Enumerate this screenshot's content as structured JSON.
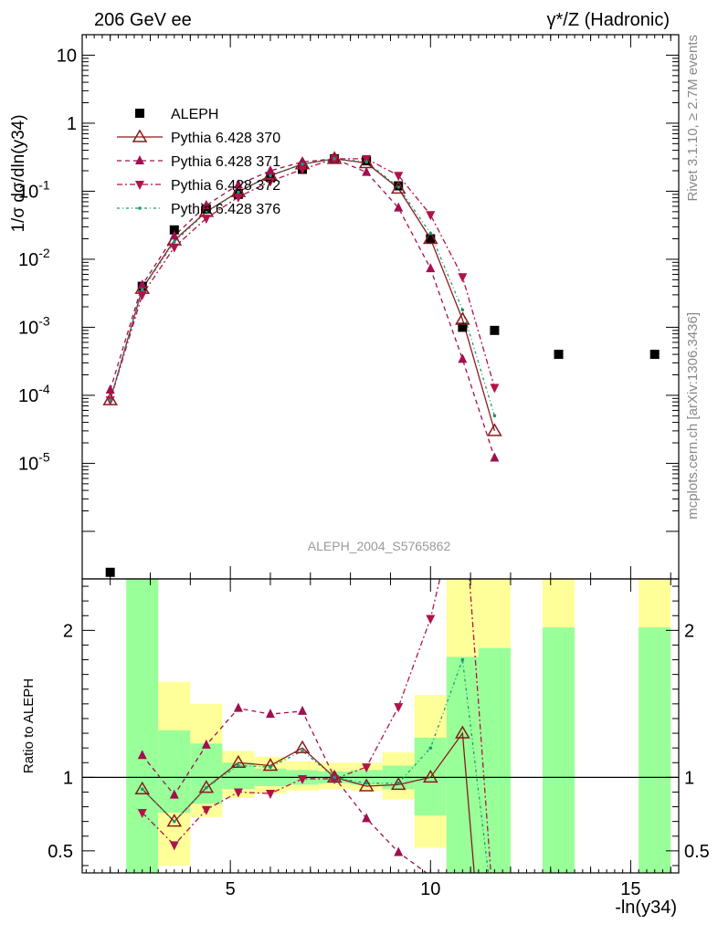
{
  "header": {
    "left": "206 GeV ee",
    "right": "γ*/Z (Hadronic)"
  },
  "side_labels": {
    "rivet": "Rivet 3.1.10, ≥ 2.7M events",
    "mcplots": "mcplots.cern.ch [arXiv:1306.3436]"
  },
  "watermark": "ALEPH_2004_S5765862",
  "colors": {
    "data": "#000000",
    "p370": "#8b1a1a",
    "p371": "#a0104f",
    "p372": "#b0134a",
    "p376": "#189a78",
    "band_yellow": "#ffff99",
    "band_green": "#99ff99"
  },
  "chart_data": [
    {
      "type": "scatter",
      "name": "main",
      "ylabel": "1/σ dσ/dln(y34)",
      "yscale": "log",
      "ylim": [
        2e-07,
        20
      ],
      "xlim": [
        1.3,
        16.2
      ],
      "yticks": [
        "10^-5",
        "10^-4",
        "10^-3",
        "10^-2",
        "10^-1",
        "1",
        "10"
      ],
      "legend_position": "top-left",
      "series": [
        {
          "name": "ALEPH",
          "style": "data",
          "points": [
            [
              2.0,
              2.5e-07
            ],
            [
              2.8,
              0.004
            ],
            [
              3.6,
              0.027
            ],
            [
              4.4,
              0.055
            ],
            [
              5.2,
              0.09
            ],
            [
              6.0,
              0.16
            ],
            [
              6.8,
              0.21
            ],
            [
              7.6,
              0.3
            ],
            [
              8.4,
              0.28
            ],
            [
              9.2,
              0.12
            ],
            [
              10.0,
              0.02
            ],
            [
              10.8,
              0.001
            ],
            [
              11.6,
              0.0009
            ],
            [
              13.2,
              0.0004
            ],
            [
              15.6,
              0.0004
            ]
          ]
        },
        {
          "name": "Pythia 6.428 370",
          "style": "p370",
          "points": [
            [
              2.0,
              8.5e-05
            ],
            [
              2.8,
              0.0037
            ],
            [
              3.6,
              0.019
            ],
            [
              4.4,
              0.05
            ],
            [
              5.2,
              0.098
            ],
            [
              6.0,
              0.17
            ],
            [
              6.8,
              0.25
            ],
            [
              7.6,
              0.3
            ],
            [
              8.4,
              0.26
            ],
            [
              9.2,
              0.11
            ],
            [
              10.0,
              0.02
            ],
            [
              10.8,
              0.0013
            ],
            [
              11.6,
              3e-05
            ]
          ]
        },
        {
          "name": "Pythia 6.428 371",
          "style": "p371",
          "points": [
            [
              2.0,
              0.00012
            ],
            [
              2.8,
              0.0042
            ],
            [
              3.6,
              0.022
            ],
            [
              4.4,
              0.062
            ],
            [
              5.2,
              0.125
            ],
            [
              6.0,
              0.2
            ],
            [
              6.8,
              0.27
            ],
            [
              7.6,
              0.3
            ],
            [
              8.4,
              0.19
            ],
            [
              9.2,
              0.057
            ],
            [
              10.0,
              0.0073
            ],
            [
              10.8,
              0.00034
            ],
            [
              11.6,
              1.2e-05
            ]
          ]
        },
        {
          "name": "Pythia 6.428 372",
          "style": "p372",
          "points": [
            [
              2.0,
              8.5e-05
            ],
            [
              2.8,
              0.003
            ],
            [
              3.6,
              0.015
            ],
            [
              4.4,
              0.04
            ],
            [
              5.2,
              0.082
            ],
            [
              6.0,
              0.14
            ],
            [
              6.8,
              0.21
            ],
            [
              7.6,
              0.3
            ],
            [
              8.4,
              0.3
            ],
            [
              9.2,
              0.17
            ],
            [
              10.0,
              0.045
            ],
            [
              10.8,
              0.0055
            ],
            [
              11.6,
              0.00013
            ]
          ]
        },
        {
          "name": "Pythia 6.428 376",
          "style": "p376",
          "points": [
            [
              2.0,
              8.5e-05
            ],
            [
              2.8,
              0.0036
            ],
            [
              3.6,
              0.018
            ],
            [
              4.4,
              0.049
            ],
            [
              5.2,
              0.097
            ],
            [
              6.0,
              0.17
            ],
            [
              6.8,
              0.25
            ],
            [
              7.6,
              0.3
            ],
            [
              8.4,
              0.27
            ],
            [
              9.2,
              0.115
            ],
            [
              10.0,
              0.024
            ],
            [
              10.8,
              0.0018
            ],
            [
              11.6,
              5e-05
            ]
          ]
        }
      ]
    },
    {
      "type": "line",
      "name": "ratio",
      "ylabel": "Ratio to ALEPH",
      "xlabel": "-ln(y34)",
      "ylim": [
        0.35,
        2.35
      ],
      "xlim": [
        1.3,
        16.2
      ],
      "xticks": [
        "5",
        "10",
        "15"
      ],
      "yticks": [
        "0.5",
        "1",
        "2"
      ],
      "bands": [
        {
          "x0": 2.4,
          "x1": 3.2,
          "y_lo": 0.0,
          "y_hi": 5.0,
          "g_lo": 0.0,
          "g_hi": 5.0
        },
        {
          "x0": 3.2,
          "x1": 4.0,
          "y_lo": 0.4,
          "y_hi": 1.65,
          "g_lo": 0.76,
          "g_hi": 1.32
        },
        {
          "x0": 4.0,
          "x1": 4.8,
          "y_lo": 0.73,
          "y_hi": 1.5,
          "g_lo": 0.82,
          "g_hi": 1.23
        },
        {
          "x0": 4.8,
          "x1": 5.6,
          "y_lo": 0.86,
          "y_hi": 1.18,
          "g_lo": 0.92,
          "g_hi": 1.1
        },
        {
          "x0": 5.6,
          "x1": 6.4,
          "y_lo": 0.89,
          "y_hi": 1.14,
          "g_lo": 0.94,
          "g_hi": 1.06
        },
        {
          "x0": 6.4,
          "x1": 7.2,
          "y_lo": 0.91,
          "y_hi": 1.11,
          "g_lo": 0.95,
          "g_hi": 1.05
        },
        {
          "x0": 7.2,
          "x1": 8.0,
          "y_lo": 0.92,
          "y_hi": 1.1,
          "g_lo": 0.96,
          "g_hi": 1.04
        },
        {
          "x0": 8.0,
          "x1": 8.8,
          "y_lo": 0.91,
          "y_hi": 1.1,
          "g_lo": 0.95,
          "g_hi": 1.05
        },
        {
          "x0": 8.8,
          "x1": 9.6,
          "y_lo": 0.85,
          "y_hi": 1.17,
          "g_lo": 0.92,
          "g_hi": 1.08
        },
        {
          "x0": 9.6,
          "x1": 10.4,
          "y_lo": 0.52,
          "y_hi": 1.56,
          "g_lo": 0.74,
          "g_hi": 1.27
        },
        {
          "x0": 10.4,
          "x1": 11.2,
          "y_lo": 0.0,
          "y_hi": 5.0,
          "g_lo": 0.0,
          "g_hi": 1.82
        },
        {
          "x0": 11.2,
          "x1": 12.0,
          "y_lo": 0.0,
          "y_hi": 5.0,
          "g_lo": 0.0,
          "g_hi": 1.88
        },
        {
          "x0": 12.8,
          "x1": 13.6,
          "y_lo": 0.0,
          "y_hi": 5.0,
          "g_lo": 0.0,
          "g_hi": 2.02
        },
        {
          "x0": 15.2,
          "x1": 16.0,
          "y_lo": 0.0,
          "y_hi": 5.0,
          "g_lo": 0.0,
          "g_hi": 2.02
        }
      ],
      "series": [
        {
          "name": "Pythia 6.428 370",
          "style": "p370",
          "points": [
            [
              2.8,
              0.92
            ],
            [
              3.6,
              0.7
            ],
            [
              4.4,
              0.93
            ],
            [
              5.2,
              1.1
            ],
            [
              6.0,
              1.08
            ],
            [
              6.8,
              1.2
            ],
            [
              7.6,
              1.0
            ],
            [
              8.4,
              0.94
            ],
            [
              9.2,
              0.95
            ],
            [
              10.0,
              1.0
            ],
            [
              10.8,
              1.3
            ],
            [
              11.2,
              0.0
            ]
          ]
        },
        {
          "name": "Pythia 6.428 371",
          "style": "p371",
          "points": [
            [
              2.8,
              1.15
            ],
            [
              3.6,
              0.88
            ],
            [
              4.4,
              1.22
            ],
            [
              5.2,
              1.47
            ],
            [
              6.0,
              1.43
            ],
            [
              6.8,
              1.45
            ],
            [
              7.6,
              1.0
            ],
            [
              8.4,
              0.72
            ],
            [
              9.2,
              0.49
            ],
            [
              10.0,
              0.33
            ]
          ]
        },
        {
          "name": "Pythia 6.428 372",
          "style": "p372",
          "points": [
            [
              2.8,
              0.76
            ],
            [
              3.6,
              0.54
            ],
            [
              4.4,
              0.78
            ],
            [
              5.2,
              0.9
            ],
            [
              6.0,
              0.89
            ],
            [
              6.8,
              0.99
            ],
            [
              7.6,
              0.99
            ],
            [
              8.4,
              1.07
            ],
            [
              9.2,
              1.48
            ],
            [
              10.0,
              2.08
            ],
            [
              10.8,
              3.0
            ],
            [
              11.6,
              0.0
            ]
          ]
        },
        {
          "name": "Pythia 6.428 376",
          "style": "p376",
          "points": [
            [
              2.8,
              0.92
            ],
            [
              3.6,
              0.7
            ],
            [
              4.4,
              0.93
            ],
            [
              5.2,
              1.08
            ],
            [
              6.0,
              1.07
            ],
            [
              6.8,
              1.18
            ],
            [
              7.6,
              1.0
            ],
            [
              8.4,
              0.96
            ],
            [
              9.2,
              0.96
            ],
            [
              10.0,
              1.2
            ],
            [
              10.8,
              1.8
            ],
            [
              11.6,
              0.0
            ]
          ]
        }
      ]
    }
  ]
}
